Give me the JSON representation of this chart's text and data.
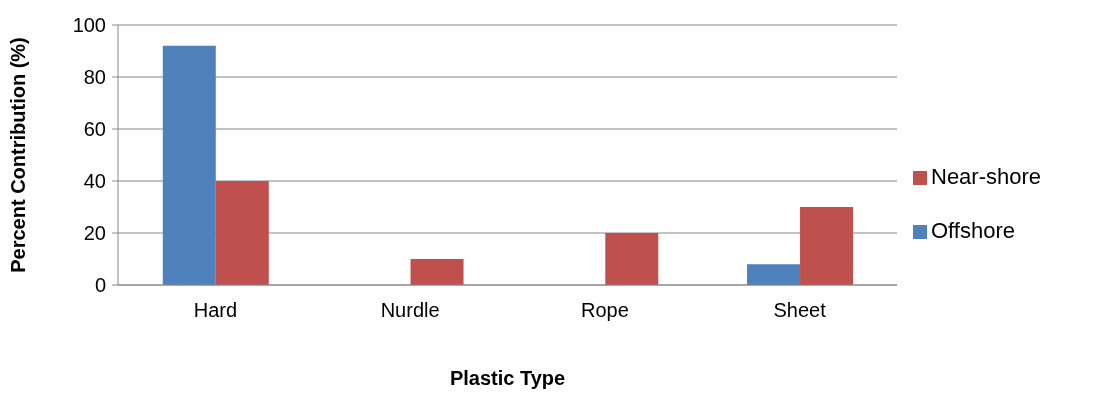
{
  "chart_data": {
    "type": "bar",
    "xlabel": "Plastic Type",
    "ylabel": "Percent Contribution (%)",
    "categories": [
      "Hard",
      "Nurdle",
      "Rope",
      "Sheet"
    ],
    "series": [
      {
        "name": "Offshore",
        "color": "#4f81bd",
        "values": [
          92,
          0,
          0,
          8
        ]
      },
      {
        "name": "Near-shore",
        "color": "#c0504d",
        "values": [
          40,
          10,
          20,
          30
        ]
      }
    ],
    "ylim": [
      0,
      100
    ],
    "yticks": [
      0,
      20,
      40,
      60,
      80,
      100
    ],
    "grid": "y",
    "legend": "right"
  }
}
